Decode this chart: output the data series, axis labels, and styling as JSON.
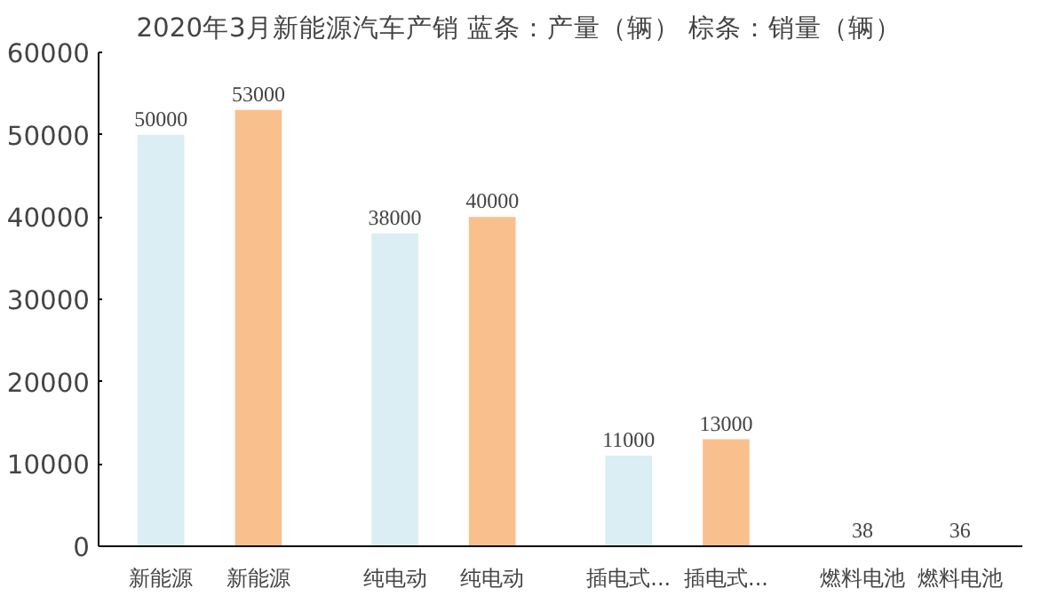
{
  "chart_data": {
    "type": "bar",
    "title": "2020年3月新能源汽车产销        蓝条：产量（辆）    棕条：销量（辆）",
    "categories": [
      "新能源",
      "新能源",
      "纯电动",
      "纯电动",
      "插电式...",
      "插电式...",
      "燃料电池",
      "燃料电池"
    ],
    "values": [
      50000,
      53000,
      38000,
      40000,
      11000,
      13000,
      38,
      36
    ],
    "colors": [
      "#daeef3",
      "#f9c08e",
      "#daeef3",
      "#f9c08e",
      "#daeef3",
      "#f9c08e",
      "#daeef3",
      "#f9c08e"
    ],
    "ylim": [
      0,
      60000
    ],
    "yticks": [
      0,
      10000,
      20000,
      30000,
      40000,
      50000,
      60000
    ],
    "grid": false,
    "data_labels": true
  }
}
